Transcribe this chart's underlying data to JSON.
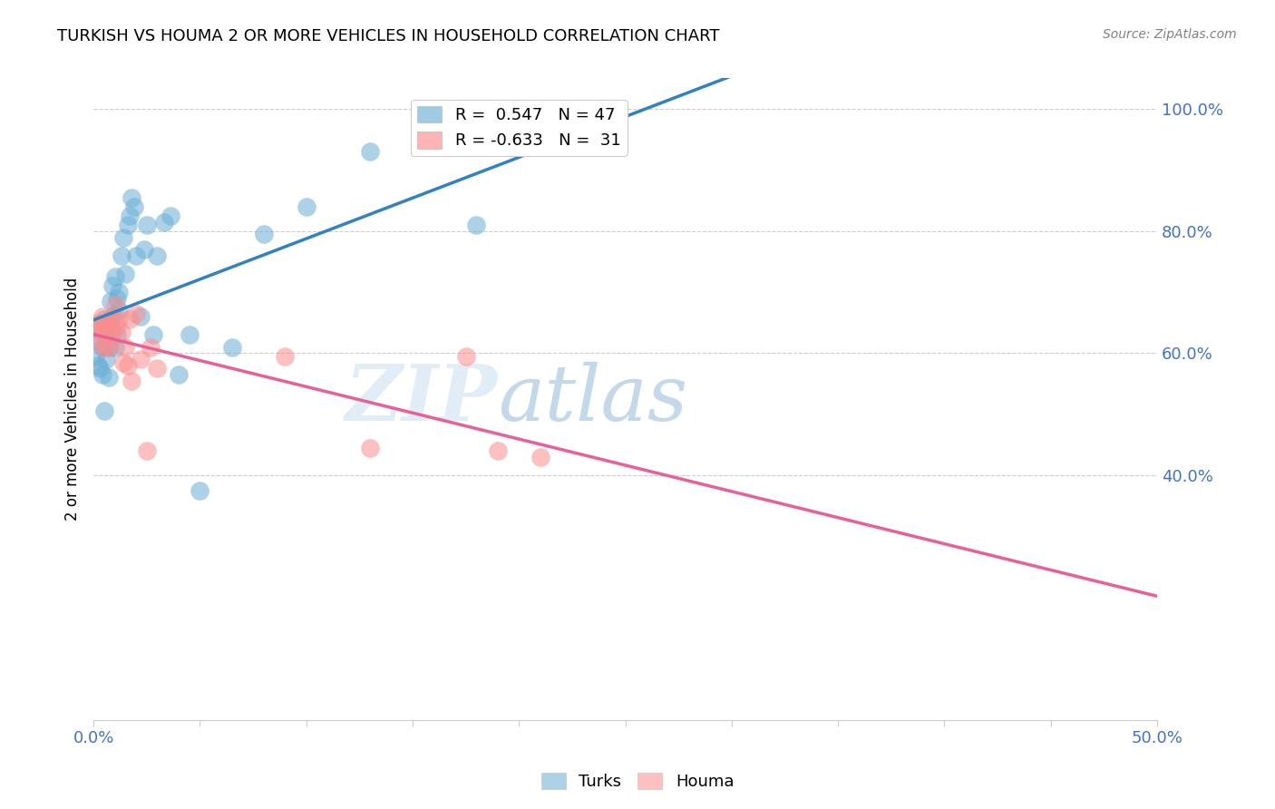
{
  "title": "TURKISH VS HOUMA 2 OR MORE VEHICLES IN HOUSEHOLD CORRELATION CHART",
  "source": "Source: ZipAtlas.com",
  "ylabel": "2 or more Vehicles in Household",
  "xlim": [
    0.0,
    0.5
  ],
  "ylim": [
    0.0,
    1.05
  ],
  "turks_R": 0.547,
  "turks_N": 47,
  "houma_R": -0.633,
  "houma_N": 31,
  "turks_color": "#6baed6",
  "houma_color": "#fc8d8d",
  "turks_line_color": "#3182bd",
  "houma_line_color": "#e8609a",
  "turks_x": [
    0.001,
    0.002,
    0.002,
    0.003,
    0.003,
    0.004,
    0.004,
    0.005,
    0.005,
    0.006,
    0.006,
    0.007,
    0.007,
    0.008,
    0.008,
    0.009,
    0.009,
    0.01,
    0.01,
    0.011,
    0.011,
    0.012,
    0.012,
    0.013,
    0.014,
    0.015,
    0.016,
    0.017,
    0.018,
    0.019,
    0.02,
    0.022,
    0.024,
    0.025,
    0.028,
    0.03,
    0.033,
    0.036,
    0.04,
    0.045,
    0.05,
    0.065,
    0.08,
    0.1,
    0.13,
    0.18,
    0.23
  ],
  "turks_y": [
    0.595,
    0.58,
    0.62,
    0.575,
    0.64,
    0.565,
    0.61,
    0.655,
    0.505,
    0.59,
    0.63,
    0.56,
    0.61,
    0.645,
    0.685,
    0.71,
    0.66,
    0.61,
    0.725,
    0.69,
    0.63,
    0.67,
    0.7,
    0.76,
    0.79,
    0.73,
    0.81,
    0.825,
    0.855,
    0.84,
    0.76,
    0.66,
    0.77,
    0.81,
    0.63,
    0.76,
    0.815,
    0.825,
    0.565,
    0.63,
    0.375,
    0.61,
    0.795,
    0.84,
    0.93,
    0.81,
    0.975
  ],
  "houma_x": [
    0.001,
    0.002,
    0.002,
    0.003,
    0.004,
    0.004,
    0.005,
    0.006,
    0.007,
    0.008,
    0.008,
    0.009,
    0.01,
    0.011,
    0.012,
    0.013,
    0.014,
    0.015,
    0.016,
    0.017,
    0.018,
    0.02,
    0.022,
    0.025,
    0.027,
    0.03,
    0.09,
    0.13,
    0.175,
    0.19,
    0.21
  ],
  "houma_y": [
    0.64,
    0.65,
    0.62,
    0.64,
    0.66,
    0.635,
    0.61,
    0.65,
    0.61,
    0.625,
    0.655,
    0.635,
    0.68,
    0.645,
    0.655,
    0.635,
    0.585,
    0.61,
    0.58,
    0.655,
    0.555,
    0.665,
    0.59,
    0.44,
    0.61,
    0.575,
    0.595,
    0.445,
    0.595,
    0.44,
    0.43
  ]
}
